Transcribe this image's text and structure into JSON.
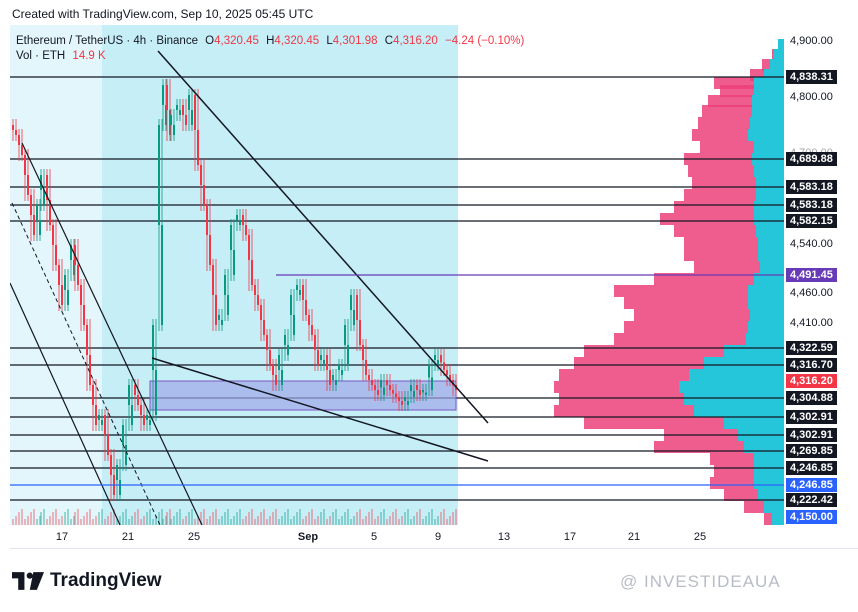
{
  "header": {
    "created": "Created with TradingView.com, Sep 10, 2025 05:45 UTC"
  },
  "legend": {
    "symbol": "Ethereum / TetherUS · 4h · Binance",
    "o_label": "O",
    "o": "4,320.45",
    "h_label": "H",
    "h": "4,320.45",
    "l_label": "L",
    "l": "4,301.98",
    "c_label": "C",
    "c": "4,316.20",
    "change": "−4.24 (−0.10%)",
    "vol_label": "Vol · ETH",
    "vol": "14.9 K"
  },
  "chart_data": {
    "type": "candlestick",
    "symbol": "ETHUSDT",
    "timeframe": "4h",
    "x_tick_labels": [
      "17",
      "21",
      "25",
      "Sep",
      "5",
      "9",
      "13",
      "17",
      "21",
      "25"
    ],
    "y_tick_labels": [
      "4,900.00",
      "4,800.00",
      "4,700.00",
      "4,540.00",
      "4,460.00",
      "4,410.00"
    ],
    "ylim": [
      4150,
      4920
    ],
    "horizontal_levels": [
      {
        "label": "4,838.31",
        "value": 4838.31
      },
      {
        "label": "4,689.88",
        "value": 4689.88
      },
      {
        "label": "4,583.18",
        "value": 4583.18
      },
      {
        "label": "4,583.18",
        "value": 4583.18
      },
      {
        "label": "4,582.15",
        "value": 4582.15
      },
      {
        "label": "4,491.45",
        "value": 4491.45,
        "color": "#673ab7"
      },
      {
        "label": "4,322.59",
        "value": 4322.59
      },
      {
        "label": "4,316.70",
        "value": 4316.7
      },
      {
        "label": "4,316.20",
        "value": 4316.2,
        "current": true
      },
      {
        "label": "4,304.88",
        "value": 4304.88
      },
      {
        "label": "4,302.91",
        "value": 4302.91
      },
      {
        "label": "4,302.91",
        "value": 4302.91
      },
      {
        "label": "4,269.85",
        "value": 4269.85
      },
      {
        "label": "4,246.85",
        "value": 4246.85
      },
      {
        "label": "4,246.85",
        "value": 4246.85,
        "color": "#2962ff"
      },
      {
        "label": "4,222.42",
        "value": 4222.42
      },
      {
        "label": "4,150.00",
        "value": 4150.0,
        "color": "#2962ff"
      }
    ],
    "colors": {
      "up": "#089981",
      "down": "#f23645",
      "zone": "#26c6da",
      "profile_pink": "#f06292",
      "profile_cyan": "#26c6da",
      "box": "#7e57c2"
    }
  },
  "footer": {
    "brand": "TradingView",
    "watermark": "@ INVESTIDEAUA"
  }
}
